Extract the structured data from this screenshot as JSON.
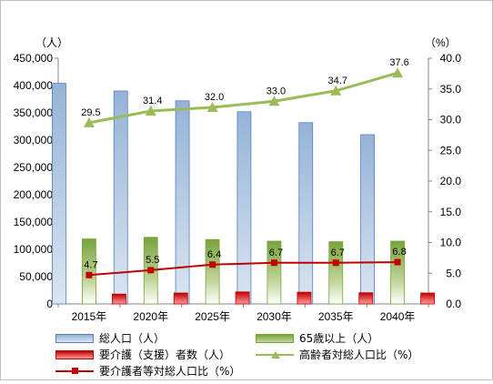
{
  "chart_data": {
    "type": "bar",
    "categories": [
      "2015年",
      "2020年",
      "2025年",
      "2030年",
      "2035年",
      "2040年"
    ],
    "y_left": {
      "unit_label": "（人）",
      "min": 0,
      "max": 450000,
      "step": 50000,
      "ticks": [
        "0",
        "50,000",
        "100,000",
        "150,000",
        "200,000",
        "250,000",
        "300,000",
        "350,000",
        "400,000",
        "450,000"
      ]
    },
    "y_right": {
      "unit_label": "（%）",
      "min": 0,
      "max": 40,
      "step": 5,
      "ticks": [
        "0.0",
        "5.0",
        "10.0",
        "15.0",
        "20.0",
        "25.0",
        "30.0",
        "35.0",
        "40.0"
      ]
    },
    "series": [
      {
        "name": "総人口（人）",
        "kind": "bar",
        "axis": "left",
        "color": "#4f81bd",
        "values": [
          404000,
          390000,
          372000,
          352000,
          332000,
          310000
        ]
      },
      {
        "name": "65歳以上（人）",
        "kind": "bar",
        "axis": "left",
        "color": "#77a33c",
        "values": [
          119000,
          122000,
          118000,
          115000,
          114000,
          115000
        ]
      },
      {
        "name": "要介護（支援）者数（人）",
        "kind": "bar",
        "axis": "left",
        "color": "#c00000",
        "values": [
          18000,
          20000,
          22000,
          21500,
          20500,
          20000
        ]
      },
      {
        "name": "高齢者対総人口比（%）",
        "kind": "line",
        "axis": "right",
        "color": "#9bbb59",
        "marker": "triangle",
        "values": [
          29.5,
          31.4,
          32.0,
          33.0,
          34.7,
          37.6
        ],
        "labels": [
          "29.5",
          "31.4",
          "32.0",
          "33.0",
          "34.7",
          "37.6"
        ]
      },
      {
        "name": "要介護者等対総人口比（%）",
        "kind": "line",
        "axis": "right",
        "color": "#c00000",
        "marker": "square",
        "values": [
          4.7,
          5.5,
          6.4,
          6.7,
          6.7,
          6.8
        ],
        "labels": [
          "4.7",
          "5.5",
          "6.4",
          "6.7",
          "6.7",
          "6.8"
        ]
      }
    ],
    "grid": false,
    "legend_position": "bottom"
  }
}
